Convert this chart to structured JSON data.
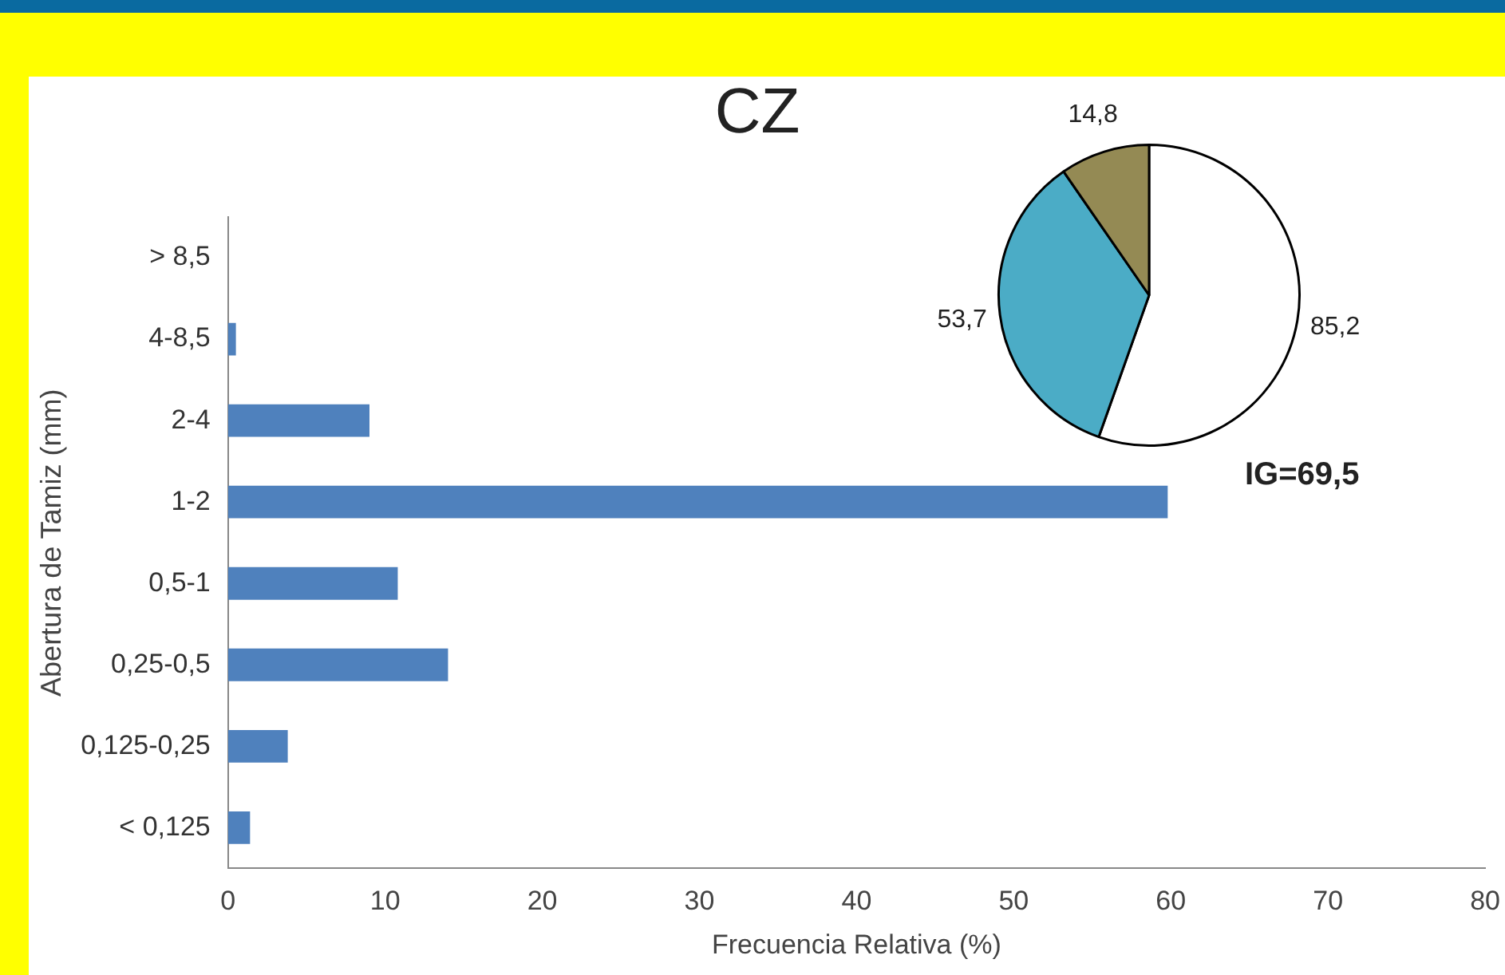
{
  "chart_data": [
    {
      "type": "bar",
      "orientation": "horizontal",
      "title": "CZ",
      "xlabel": "Frecuencia Relativa (%)",
      "ylabel": "Abertura de Tamiz (mm)",
      "categories": [
        "> 8,5",
        "4-8,5",
        "2-4",
        "1-2",
        "0,5-1",
        "0,25-0,5",
        "0,125-0,25",
        "< 0,125"
      ],
      "values": [
        0,
        0.5,
        9,
        59.8,
        10.8,
        14,
        3.8,
        1.4
      ],
      "color": "#4f81bd",
      "xlim": [
        0,
        80
      ],
      "xticks": [
        0,
        10,
        20,
        30,
        40,
        50,
        60,
        70,
        80
      ],
      "grid": false,
      "legend": false
    },
    {
      "type": "pie",
      "categories": [
        null,
        null,
        null
      ],
      "values": [
        85.2,
        53.7,
        14.8
      ],
      "colors": [
        "#ffffff",
        "#4bacc6",
        "#948a54"
      ],
      "value_labels": [
        "85,2",
        "53,7",
        "14,8"
      ],
      "annotations": [
        "IG=69,5"
      ],
      "legend": false
    }
  ]
}
